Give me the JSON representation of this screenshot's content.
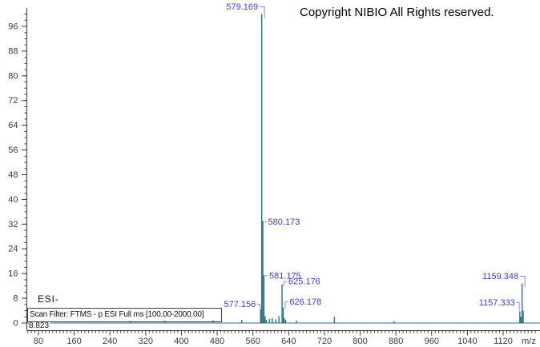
{
  "header": {
    "copyright": "Copyright NIBIO All Rights reserved."
  },
  "labels": {
    "ionization": "ESI-",
    "scan_filter": "Scan Filter: FTMS - p ESI Full ms [100.00-2000.00]",
    "retention_time": "8.823"
  },
  "chart_data": {
    "type": "bar",
    "subtype": "mass-spectrum-stick-plot",
    "title": "",
    "xlabel": "m/z",
    "ylabel": "",
    "x_axis": {
      "ticks": [
        80,
        160,
        240,
        320,
        400,
        480,
        560,
        640,
        720,
        800,
        880,
        960,
        1040,
        1120
      ],
      "minor_step": 8,
      "unit_label": "m/z",
      "range": [
        53,
        1200
      ]
    },
    "y_axis": {
      "ticks": [
        0,
        8,
        16,
        24,
        32,
        40,
        48,
        56,
        64,
        72,
        80,
        88,
        96
      ],
      "minor_step": 2,
      "range": [
        0,
        102
      ]
    },
    "grid": false,
    "legend": false,
    "colors": {
      "trace": "#2e6f7f",
      "annotation": "#3d3dc0",
      "connector": "#9090cf",
      "axis": "#3a3a3a"
    },
    "peaks": [
      {
        "mz": 286.0,
        "intensity": 0.7
      },
      {
        "mz": 363.0,
        "intensity": 0.7
      },
      {
        "mz": 471.0,
        "intensity": 0.9
      },
      {
        "mz": 535.0,
        "intensity": 1.0
      },
      {
        "mz": 577.156,
        "intensity": 4.5,
        "label": "577.156",
        "label_style": "dash-left",
        "label_dy": -6
      },
      {
        "mz": 579.169,
        "intensity": 100,
        "label": "579.169",
        "label_style": "bracket-left"
      },
      {
        "mz": 580.173,
        "intensity": 33,
        "label": "580.173",
        "label_style": "dash-right"
      },
      {
        "mz": 581.175,
        "intensity": 15.5,
        "label": "581.175",
        "label_style": "dash-right"
      },
      {
        "mz": 583.2,
        "intensity": 2.2
      },
      {
        "mz": 590.1,
        "intensity": 1.0
      },
      {
        "mz": 597.2,
        "intensity": 1.3
      },
      {
        "mz": 603.2,
        "intensity": 1.6
      },
      {
        "mz": 611.2,
        "intensity": 1.2
      },
      {
        "mz": 618.2,
        "intensity": 2.2
      },
      {
        "mz": 625.176,
        "intensity": 12.5,
        "label": "625.176",
        "label_style": "bracket-right",
        "label_dy": -3.5
      },
      {
        "mz": 626.178,
        "intensity": 5.0,
        "label": "626.178",
        "label_style": "bracket-right",
        "label_dy": -7
      },
      {
        "mz": 628.2,
        "intensity": 1.6
      },
      {
        "mz": 633.2,
        "intensity": 1.0
      },
      {
        "mz": 657.2,
        "intensity": 0.8
      },
      {
        "mz": 742.3,
        "intensity": 2.0
      },
      {
        "mz": 876.0,
        "intensity": 0.6
      },
      {
        "mz": 1157.333,
        "intensity": 3.8,
        "label": "1157.333",
        "label_style": "dash-left",
        "label_dy": -11
      },
      {
        "mz": 1158.34,
        "intensity": 2.0
      },
      {
        "mz": 1159.348,
        "intensity": 12.8,
        "label": "1159.348",
        "label_style": "bracket-left"
      },
      {
        "mz": 1160.35,
        "intensity": 4.0
      }
    ]
  }
}
